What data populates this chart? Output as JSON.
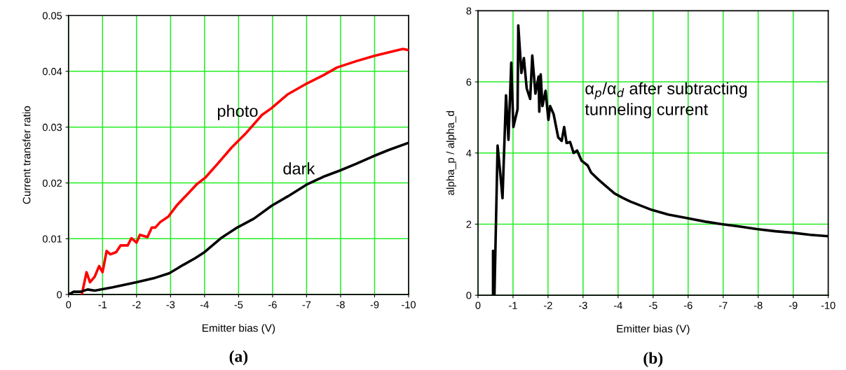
{
  "chart_data": [
    {
      "type": "line",
      "xlabel": "Emitter bias (V)",
      "ylabel": "Current transfer ratio",
      "xlim": [
        0,
        -10
      ],
      "xticks": [
        0,
        -1,
        -2,
        -3,
        -4,
        -5,
        -6,
        -7,
        -8,
        -9,
        -10
      ],
      "ylim": [
        0,
        0.05
      ],
      "yticks": [
        0,
        0.01,
        0.02,
        0.03,
        0.04,
        0.05
      ],
      "grid": true,
      "legend": false,
      "line_style": "solid",
      "marker": "none",
      "annotations": [
        "(a)"
      ],
      "series": [
        {
          "name": "photo",
          "color": "#ff0000",
          "x": [
            -0.39,
            -0.53,
            -0.63,
            -0.77,
            -0.9,
            -1.0,
            -1.12,
            -1.23,
            -1.4,
            -1.53,
            -1.74,
            -1.85,
            -2.0,
            -2.1,
            -2.32,
            -2.45,
            -2.55,
            -2.7,
            -2.94,
            -3.2,
            -3.5,
            -3.76,
            -4.03,
            -4.38,
            -4.79,
            -5.2,
            -5.69,
            -5.97,
            -6.45,
            -7.0,
            -7.49,
            -7.9,
            -8.45,
            -9.0,
            -9.55,
            -9.83,
            -10.0
          ],
          "values": [
            0,
            0.004,
            0.0022,
            0.0032,
            0.0051,
            0.004,
            0.0078,
            0.0072,
            0.0076,
            0.0088,
            0.0088,
            0.0101,
            0.0093,
            0.0107,
            0.0103,
            0.012,
            0.012,
            0.013,
            0.014,
            0.0161,
            0.018,
            0.0197,
            0.021,
            0.0234,
            0.0263,
            0.0288,
            0.0322,
            0.0334,
            0.0359,
            0.0378,
            0.0393,
            0.0407,
            0.0418,
            0.0428,
            0.0436,
            0.044,
            0.0438
          ]
        },
        {
          "name": "dark",
          "color": "#000000",
          "x": [
            0,
            -0.15,
            -0.36,
            -0.56,
            -0.77,
            -1.3,
            -2.0,
            -2.55,
            -2.96,
            -3.37,
            -3.72,
            -4.0,
            -4.48,
            -4.96,
            -5.45,
            -5.97,
            -6.45,
            -7.0,
            -7.49,
            -7.97,
            -8.45,
            -8.93,
            -9.41,
            -10.0
          ],
          "values": [
            0,
            0.0005,
            0.0005,
            0.0009,
            0.0007,
            0.0013,
            0.0022,
            0.003,
            0.0038,
            0.0053,
            0.0065,
            0.0076,
            0.0101,
            0.012,
            0.0136,
            0.0159,
            0.0176,
            0.0197,
            0.0211,
            0.0222,
            0.0234,
            0.0247,
            0.0259,
            0.0272
          ]
        }
      ]
    },
    {
      "type": "line",
      "xlabel": "Emitter bias (V)",
      "ylabel": "alpha_p / alpha_d",
      "xlim": [
        0,
        -10
      ],
      "xticks": [
        0,
        -1,
        -2,
        -3,
        -4,
        -5,
        -6,
        -7,
        -8,
        -9,
        -10
      ],
      "ylim": [
        0,
        8
      ],
      "yticks": [
        0,
        2,
        4,
        6,
        8
      ],
      "grid": true,
      "legend": false,
      "line_style": "solid",
      "marker": "none",
      "annotations": [
        "α$_{p}$/α$_{d}$ after subtracting\ntunneling current",
        "(b)"
      ],
      "series": [
        {
          "color": "#000000",
          "x": [
            -0.43,
            -0.43,
            -0.47,
            -0.56,
            -0.63,
            -0.7,
            -0.8,
            -0.87,
            -0.95,
            -1.01,
            -1.13,
            -1.15,
            -1.24,
            -1.31,
            -1.39,
            -1.49,
            -1.55,
            -1.64,
            -1.73,
            -1.75,
            -1.79,
            -1.84,
            -1.93,
            -2.01,
            -2.06,
            -2.16,
            -2.29,
            -2.39,
            -2.46,
            -2.53,
            -2.63,
            -2.73,
            -2.83,
            -2.96,
            -3.13,
            -3.23,
            -3.43,
            -3.63,
            -3.9,
            -4.15,
            -4.36,
            -4.96,
            -5.43,
            -5.96,
            -6.49,
            -6.96,
            -7.49,
            -7.96,
            -8.49,
            -8.96,
            -9.49,
            -9.99
          ],
          "values": [
            0,
            1.25,
            0,
            4.21,
            3.49,
            2.73,
            5.62,
            4.37,
            6.54,
            4.73,
            5.23,
            7.59,
            6.25,
            6.67,
            5.82,
            5.52,
            6.74,
            5.67,
            6.15,
            5.16,
            6.21,
            5.32,
            5.75,
            4.93,
            5.32,
            5.09,
            4.44,
            4.34,
            4.73,
            4.28,
            4.31,
            4.0,
            4.07,
            3.78,
            3.65,
            3.45,
            3.26,
            3.09,
            2.86,
            2.73,
            2.63,
            2.4,
            2.27,
            2.17,
            2.07,
            2.0,
            1.93,
            1.86,
            1.8,
            1.76,
            1.7,
            1.66
          ]
        }
      ]
    }
  ]
}
